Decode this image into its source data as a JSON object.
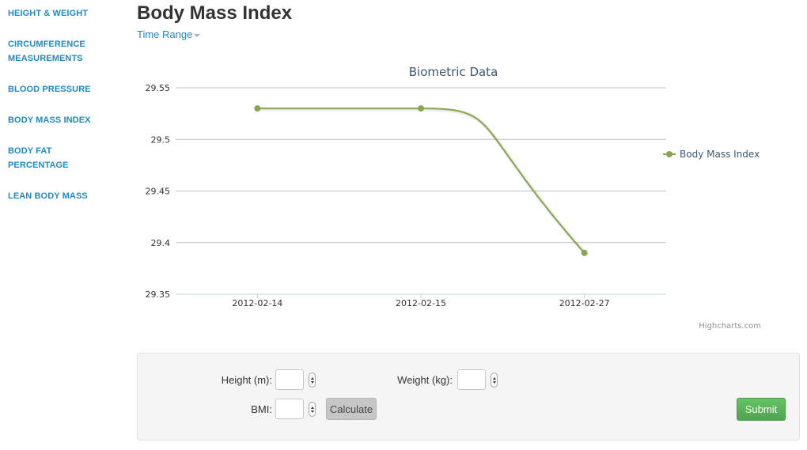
{
  "sidebar": {
    "items": [
      {
        "label": "HEIGHT & WEIGHT"
      },
      {
        "label": "CIRCUMFERENCE MEASUREMENTS"
      },
      {
        "label": "BLOOD PRESSURE"
      },
      {
        "label": "BODY MASS INDEX"
      },
      {
        "label": "BODY FAT PERCENTAGE"
      },
      {
        "label": "LEAN BODY MASS"
      }
    ]
  },
  "header": {
    "title": "Body Mass Index",
    "time_range_label": "Time Range"
  },
  "chart_data": {
    "type": "line",
    "title": "Biometric Data",
    "categories": [
      "2012-02-14",
      "2012-02-15",
      "2012-02-27"
    ],
    "series": [
      {
        "name": "Body Mass Index",
        "values": [
          29.53,
          29.53,
          29.39
        ],
        "color": "#89a54e"
      }
    ],
    "ylim": [
      29.35,
      29.55
    ],
    "yticks": [
      "29.55",
      "29.5",
      "29.45",
      "29.4",
      "29.35"
    ],
    "grid": true,
    "legend": "right",
    "credits": "Highcharts.com"
  },
  "form": {
    "height_label": "Height (m):",
    "weight_label": "Weight (kg):",
    "bmi_label": "BMI:",
    "height_value": "",
    "weight_value": "",
    "bmi_value": "",
    "calculate_label": "Calculate",
    "submit_label": "Submit"
  }
}
